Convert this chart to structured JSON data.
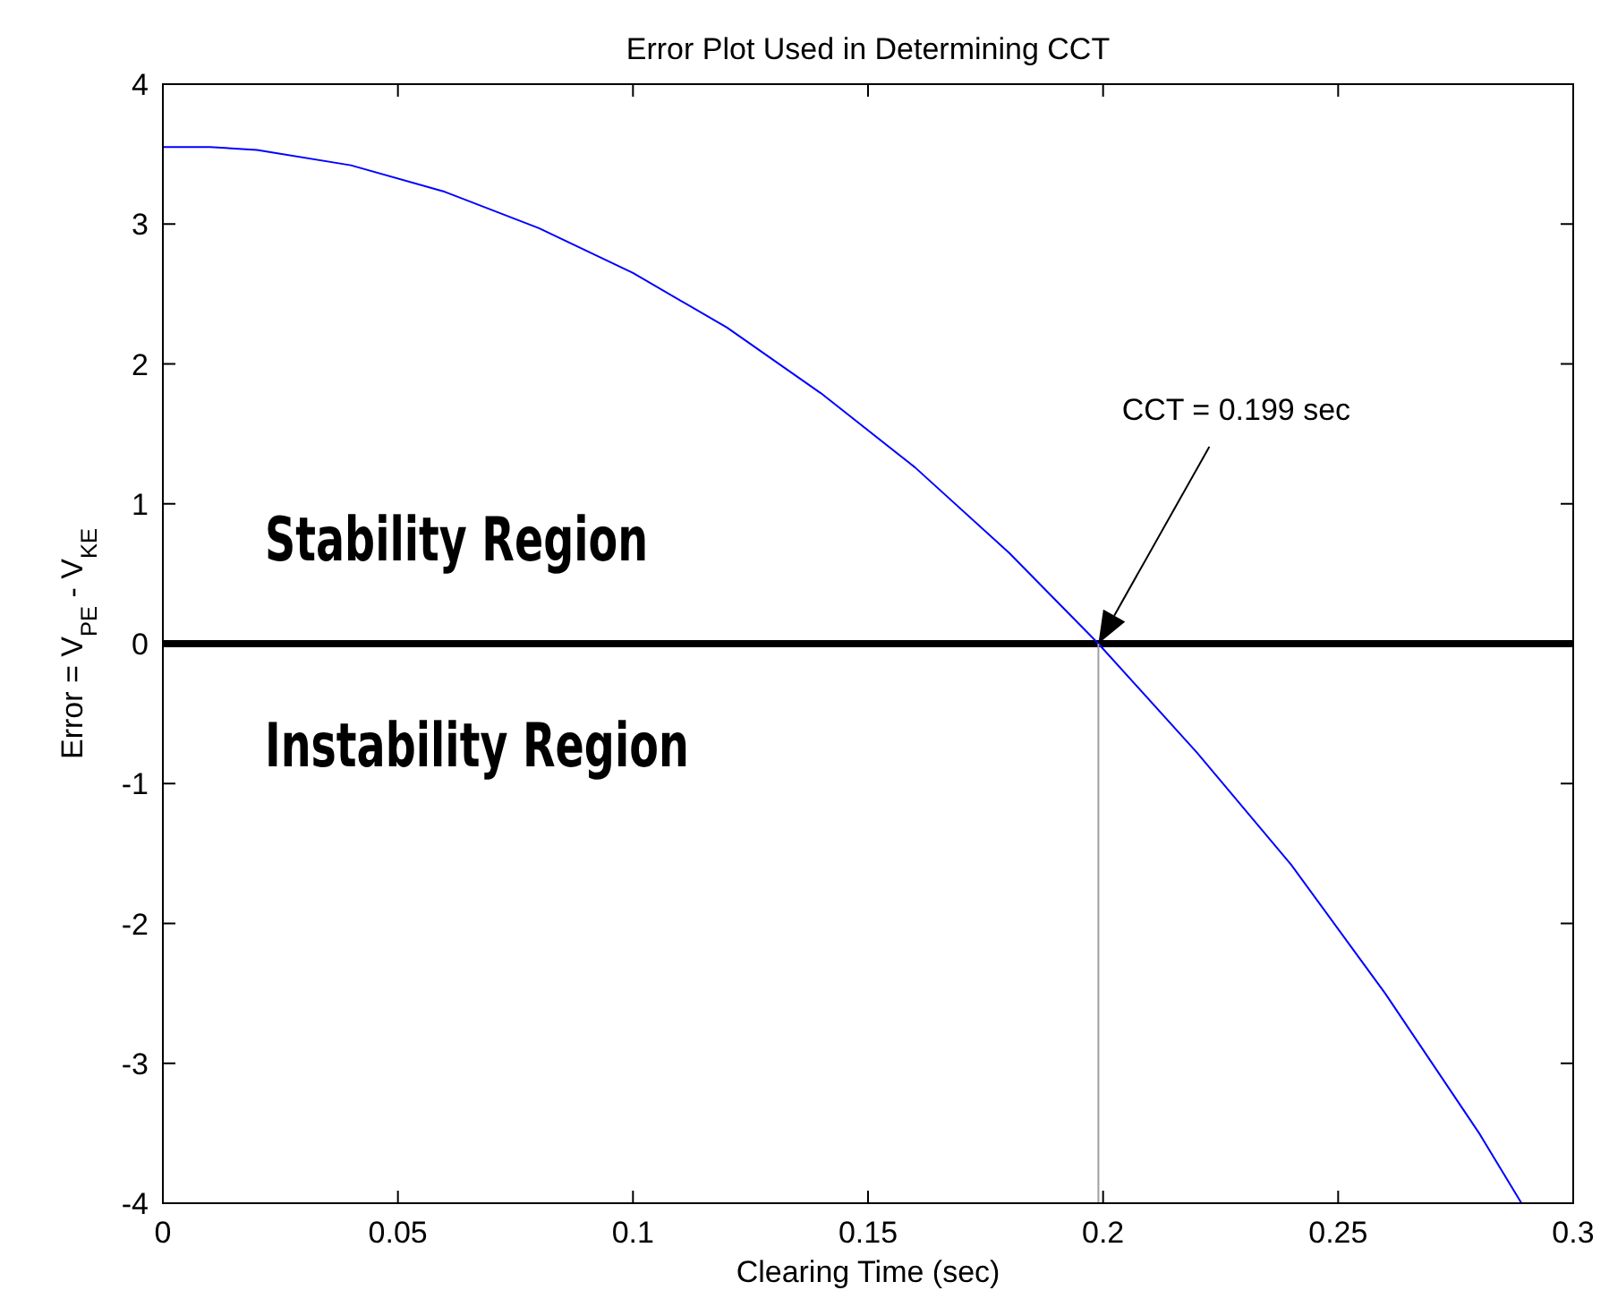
{
  "chart_data": {
    "type": "line",
    "title": "Error Plot Used in Determining CCT",
    "xlabel": "Clearing Time (sec)",
    "ylabel": "Error = V$_{PE}$ - V$_{KE}$",
    "xlim": [
      0,
      0.3
    ],
    "xticks": [
      0,
      0.05,
      0.1,
      0.15,
      0.2,
      0.25,
      0.3
    ],
    "ylim": [
      -4,
      4
    ],
    "yticks": [
      -4,
      -3,
      -2,
      -1,
      0,
      1,
      2,
      3,
      4
    ],
    "grid": false,
    "series": [
      {
        "color": "#0000ff",
        "x": [
          0,
          0.01,
          0.02,
          0.04,
          0.06,
          0.08,
          0.1,
          0.12,
          0.14,
          0.16,
          0.18,
          0.199,
          0.22,
          0.24,
          0.26,
          0.28,
          0.289
        ],
        "values": [
          3.55,
          3.55,
          3.53,
          3.42,
          3.23,
          2.97,
          2.65,
          2.26,
          1.79,
          1.26,
          0.65,
          0,
          -0.78,
          -1.58,
          -2.5,
          -3.5,
          -4
        ]
      },
      {
        "color": "#a0a0a0",
        "x": [
          0.199,
          0.199
        ],
        "values": [
          -4,
          0
        ]
      }
    ],
    "ref_lines": [
      {
        "axis": "y",
        "value": 0,
        "color": "#000000"
      }
    ],
    "annotations": [
      "CCT = 0.199 sec",
      "Stability Region",
      "Instability Region"
    ]
  }
}
